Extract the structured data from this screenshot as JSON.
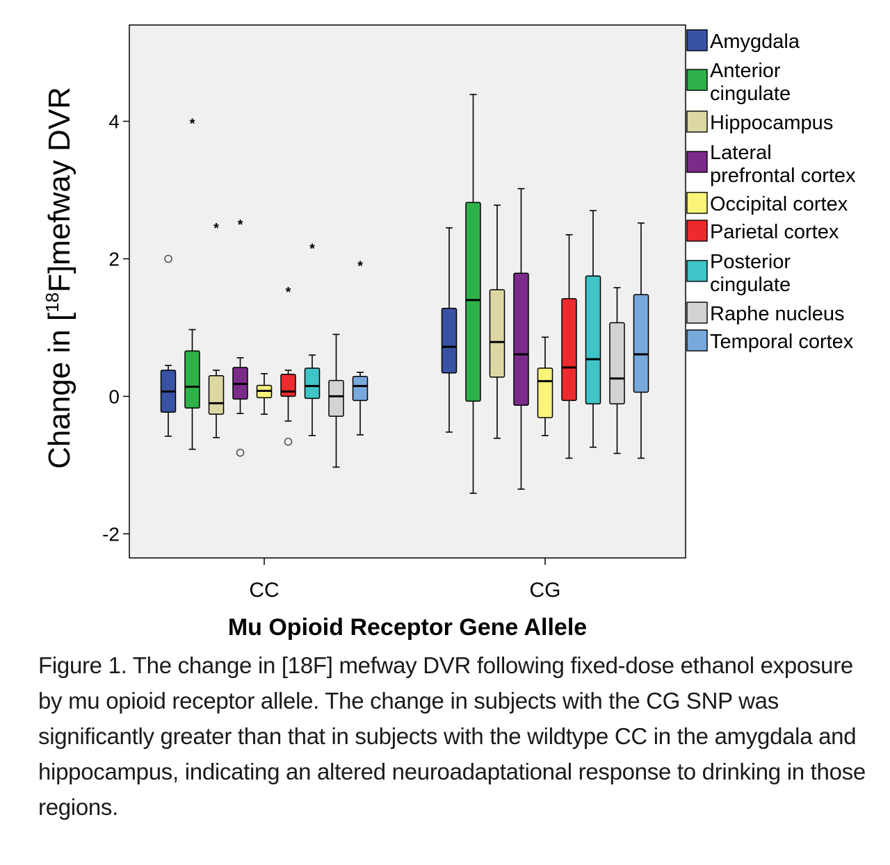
{
  "caption": "Figure 1. The change in [18F] mefway DVR following fixed-dose ethanol exposure by mu opioid receptor allele. The change in subjects with the CG SNP was significantly greater than that in subjects with the wildtype CC in the amygdala and hippocampus, indicating an altered neuroadaptational response to drinking in those regions.",
  "chart_data": {
    "type": "box",
    "title": "",
    "xlabel": "Mu Opioid Receptor Gene Allele",
    "ylabel_prefix": "Change in [",
    "ylabel_sup": "18",
    "ylabel_suffix": "F]mefway DVR",
    "ylim": [
      -2.35,
      5.4
    ],
    "yticks": [
      -2,
      0,
      2,
      4
    ],
    "ytick_labels": [
      "-2",
      "0",
      "2",
      "4"
    ],
    "categories": [
      "CC",
      "CG"
    ],
    "grid": false,
    "legend_position": "right",
    "series": [
      {
        "name": "Amygdala",
        "color": "#3953a4",
        "boxes": [
          {
            "min": -0.58,
            "q1": -0.23,
            "median": 0.07,
            "q3": 0.38,
            "max": 0.45,
            "outliers": [
              {
                "value": 2.0,
                "type": "circle"
              }
            ]
          },
          {
            "min": -0.52,
            "q1": 0.34,
            "median": 0.72,
            "q3": 1.28,
            "max": 2.45,
            "outliers": []
          }
        ]
      },
      {
        "name": "Anterior cingulate",
        "color": "#2fb14a",
        "boxes": [
          {
            "min": -0.77,
            "q1": -0.17,
            "median": 0.14,
            "q3": 0.66,
            "max": 0.97,
            "outliers": [
              {
                "value": 3.97,
                "type": "star"
              }
            ]
          },
          {
            "min": -1.41,
            "q1": -0.07,
            "median": 1.4,
            "q3": 2.82,
            "max": 4.39,
            "outliers": []
          }
        ]
      },
      {
        "name": "Hippocampus",
        "color": "#ddd7a3",
        "boxes": [
          {
            "min": -0.6,
            "q1": -0.26,
            "median": -0.1,
            "q3": 0.3,
            "max": 0.38,
            "outliers": [
              {
                "value": 2.45,
                "type": "star"
              }
            ]
          },
          {
            "min": -0.61,
            "q1": 0.28,
            "median": 0.79,
            "q3": 1.55,
            "max": 2.78,
            "outliers": []
          }
        ]
      },
      {
        "name": "Lateral prefrontal cortex",
        "color": "#7b2b8a",
        "boxes": [
          {
            "min": -0.25,
            "q1": -0.04,
            "median": 0.18,
            "q3": 0.42,
            "max": 0.56,
            "outliers": [
              {
                "value": 2.5,
                "type": "star"
              },
              {
                "value": -0.82,
                "type": "circle"
              }
            ]
          },
          {
            "min": -1.35,
            "q1": -0.13,
            "median": 0.61,
            "q3": 1.79,
            "max": 3.02,
            "outliers": []
          }
        ]
      },
      {
        "name": "Occipital cortex",
        "color": "#fbf47a",
        "boxes": [
          {
            "min": -0.26,
            "q1": -0.02,
            "median": 0.08,
            "q3": 0.16,
            "max": 0.33,
            "outliers": []
          },
          {
            "min": -0.57,
            "q1": -0.31,
            "median": 0.22,
            "q3": 0.41,
            "max": 0.86,
            "outliers": []
          }
        ]
      },
      {
        "name": "Parietal cortex",
        "color": "#ed2a2e",
        "boxes": [
          {
            "min": -0.36,
            "q1": 0.0,
            "median": 0.07,
            "q3": 0.32,
            "max": 0.38,
            "outliers": [
              {
                "value": 1.52,
                "type": "star"
              },
              {
                "value": -0.66,
                "type": "circle"
              }
            ]
          },
          {
            "min": -0.9,
            "q1": -0.06,
            "median": 0.42,
            "q3": 1.42,
            "max": 2.35,
            "outliers": []
          }
        ]
      },
      {
        "name": "Posterior cingulate",
        "color": "#3fc4c7",
        "boxes": [
          {
            "min": -0.57,
            "q1": -0.03,
            "median": 0.15,
            "q3": 0.41,
            "max": 0.6,
            "outliers": [
              {
                "value": 2.15,
                "type": "star"
              }
            ]
          },
          {
            "min": -0.74,
            "q1": -0.11,
            "median": 0.54,
            "q3": 1.75,
            "max": 2.7,
            "outliers": []
          }
        ]
      },
      {
        "name": "Raphe nucleus",
        "color": "#d3d3d3",
        "boxes": [
          {
            "min": -1.03,
            "q1": -0.29,
            "median": 0.0,
            "q3": 0.23,
            "max": 0.9,
            "outliers": []
          },
          {
            "min": -0.83,
            "q1": -0.11,
            "median": 0.26,
            "q3": 1.07,
            "max": 1.58,
            "outliers": []
          }
        ]
      },
      {
        "name": "Temporal cortex",
        "color": "#78a9dc",
        "boxes": [
          {
            "min": -0.56,
            "q1": -0.06,
            "median": 0.15,
            "q3": 0.29,
            "max": 0.35,
            "outliers": [
              {
                "value": 1.9,
                "type": "star"
              }
            ]
          },
          {
            "min": -0.9,
            "q1": 0.06,
            "median": 0.61,
            "q3": 1.48,
            "max": 2.52,
            "outliers": []
          }
        ]
      }
    ]
  }
}
